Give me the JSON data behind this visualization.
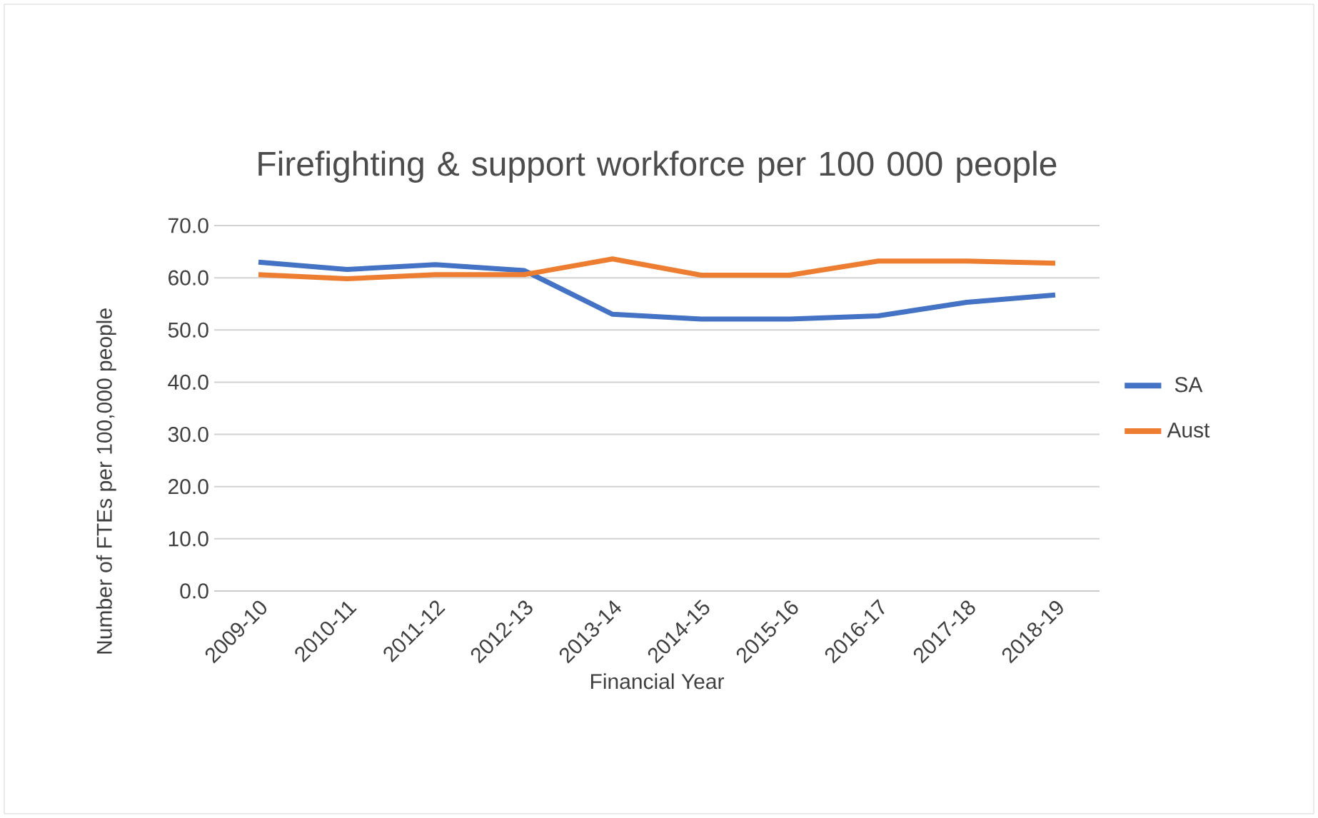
{
  "chart_data": {
    "type": "line",
    "title": "Firefighting & support workforce per 100 000 people",
    "xlabel": "Financial Year",
    "ylabel": "Number of FTEs per 100,000 people",
    "categories": [
      "2009-10",
      "2010-11",
      "2011-12",
      "2012-13",
      "2013-14",
      "2014-15",
      "2015-16",
      "2016-17",
      "2017-18",
      "2018-19"
    ],
    "series": [
      {
        "name": "SA",
        "color": "#4472c4",
        "values": [
          63.0,
          61.6,
          62.5,
          61.4,
          53.0,
          52.1,
          52.1,
          52.7,
          55.3,
          56.7
        ]
      },
      {
        "name": "Aust",
        "color": "#ed7d31",
        "values": [
          60.6,
          59.8,
          60.6,
          60.6,
          63.6,
          60.5,
          60.5,
          63.2,
          63.2,
          62.8
        ]
      }
    ],
    "ylim": [
      0,
      70
    ],
    "yticks": [
      {
        "value": 0,
        "label": "0.0"
      },
      {
        "value": 10,
        "label": "10.0"
      },
      {
        "value": 20,
        "label": "20.0"
      },
      {
        "value": 30,
        "label": "30.0"
      },
      {
        "value": 40,
        "label": "40.0"
      },
      {
        "value": 50,
        "label": "50.0"
      },
      {
        "value": 60,
        "label": "60.0"
      },
      {
        "value": 70,
        "label": "70.0"
      }
    ],
    "grid": "y",
    "legend": "right",
    "marker": "none",
    "line_style": "solid"
  }
}
